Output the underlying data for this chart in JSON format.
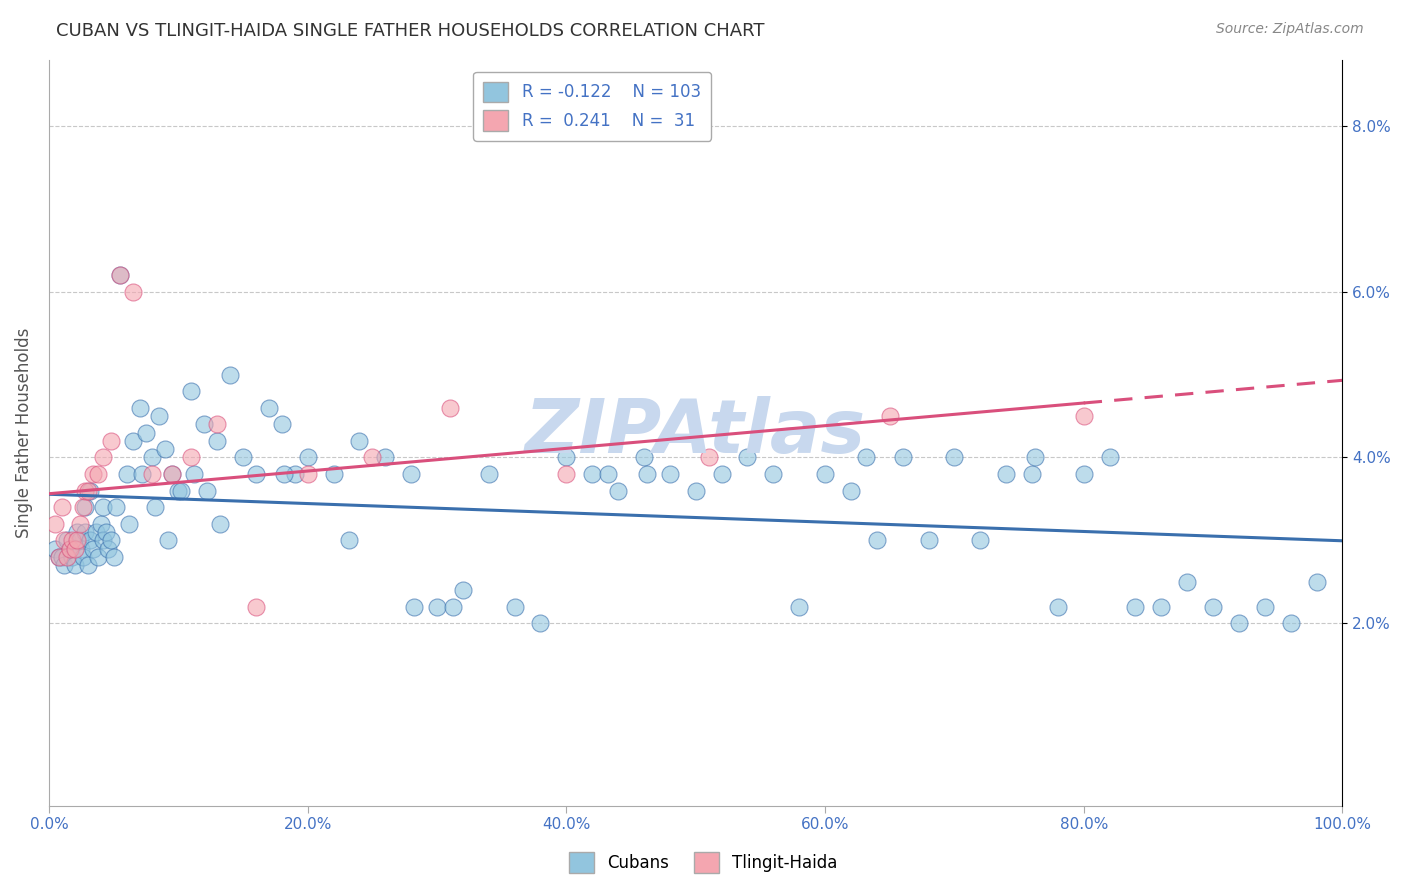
{
  "title": "CUBAN VS TLINGIT-HAIDA SINGLE FATHER HOUSEHOLDS CORRELATION CHART",
  "source": "Source: ZipAtlas.com",
  "ylabel": "Single Father Households",
  "xlim": [
    0.0,
    1.0
  ],
  "ylim": [
    -0.002,
    0.088
  ],
  "r1": "-0.122",
  "n1": "103",
  "r2": "0.241",
  "n2": "31",
  "color_blue": "#92c5de",
  "color_pink": "#f4a6b0",
  "line_blue": "#3a6fad",
  "line_pink": "#d94f7c",
  "axis_label_color": "#4472c4",
  "grid_color": "#c8c8c8",
  "watermark_color": "#c8d8ee",
  "legend_label1": "Cubans",
  "legend_label2": "Tlingit-Haida",
  "cubans_x": [
    0.005,
    0.008,
    0.01,
    0.012,
    0.014,
    0.016,
    0.018,
    0.02,
    0.022,
    0.024,
    0.025,
    0.026,
    0.028,
    0.03,
    0.032,
    0.034,
    0.036,
    0.038,
    0.04,
    0.042,
    0.044,
    0.046,
    0.048,
    0.05,
    0.055,
    0.06,
    0.065,
    0.07,
    0.075,
    0.08,
    0.085,
    0.09,
    0.095,
    0.1,
    0.11,
    0.12,
    0.13,
    0.14,
    0.15,
    0.16,
    0.17,
    0.18,
    0.19,
    0.2,
    0.22,
    0.24,
    0.26,
    0.28,
    0.3,
    0.32,
    0.34,
    0.36,
    0.38,
    0.4,
    0.42,
    0.44,
    0.46,
    0.48,
    0.5,
    0.52,
    0.54,
    0.56,
    0.58,
    0.6,
    0.62,
    0.64,
    0.66,
    0.68,
    0.7,
    0.72,
    0.74,
    0.76,
    0.78,
    0.8,
    0.82,
    0.84,
    0.86,
    0.88,
    0.9,
    0.92,
    0.94,
    0.96,
    0.98,
    0.028,
    0.032,
    0.042,
    0.052,
    0.062,
    0.072,
    0.082,
    0.092,
    0.102,
    0.112,
    0.122,
    0.132,
    0.182,
    0.232,
    0.282,
    0.432,
    0.632,
    0.762,
    0.462,
    0.312
  ],
  "cubans_y": [
    0.029,
    0.028,
    0.028,
    0.027,
    0.03,
    0.029,
    0.028,
    0.027,
    0.031,
    0.03,
    0.029,
    0.028,
    0.031,
    0.027,
    0.03,
    0.029,
    0.031,
    0.028,
    0.032,
    0.03,
    0.031,
    0.029,
    0.03,
    0.028,
    0.062,
    0.038,
    0.042,
    0.046,
    0.043,
    0.04,
    0.045,
    0.041,
    0.038,
    0.036,
    0.048,
    0.044,
    0.042,
    0.05,
    0.04,
    0.038,
    0.046,
    0.044,
    0.038,
    0.04,
    0.038,
    0.042,
    0.04,
    0.038,
    0.022,
    0.024,
    0.038,
    0.022,
    0.02,
    0.04,
    0.038,
    0.036,
    0.04,
    0.038,
    0.036,
    0.038,
    0.04,
    0.038,
    0.022,
    0.038,
    0.036,
    0.03,
    0.04,
    0.03,
    0.04,
    0.03,
    0.038,
    0.038,
    0.022,
    0.038,
    0.04,
    0.022,
    0.022,
    0.025,
    0.022,
    0.02,
    0.022,
    0.02,
    0.025,
    0.034,
    0.036,
    0.034,
    0.034,
    0.032,
    0.038,
    0.034,
    0.03,
    0.036,
    0.038,
    0.036,
    0.032,
    0.038,
    0.03,
    0.022,
    0.038,
    0.04,
    0.04,
    0.038,
    0.022
  ],
  "tlingit_x": [
    0.005,
    0.008,
    0.01,
    0.012,
    0.014,
    0.016,
    0.018,
    0.02,
    0.022,
    0.024,
    0.026,
    0.028,
    0.03,
    0.034,
    0.038,
    0.042,
    0.048,
    0.055,
    0.065,
    0.08,
    0.095,
    0.11,
    0.13,
    0.16,
    0.2,
    0.25,
    0.31,
    0.4,
    0.51,
    0.65,
    0.8
  ],
  "tlingit_y": [
    0.032,
    0.028,
    0.034,
    0.03,
    0.028,
    0.029,
    0.03,
    0.029,
    0.03,
    0.032,
    0.034,
    0.036,
    0.036,
    0.038,
    0.038,
    0.04,
    0.042,
    0.062,
    0.06,
    0.038,
    0.038,
    0.04,
    0.044,
    0.022,
    0.038,
    0.04,
    0.046,
    0.038,
    0.04,
    0.045,
    0.045
  ]
}
